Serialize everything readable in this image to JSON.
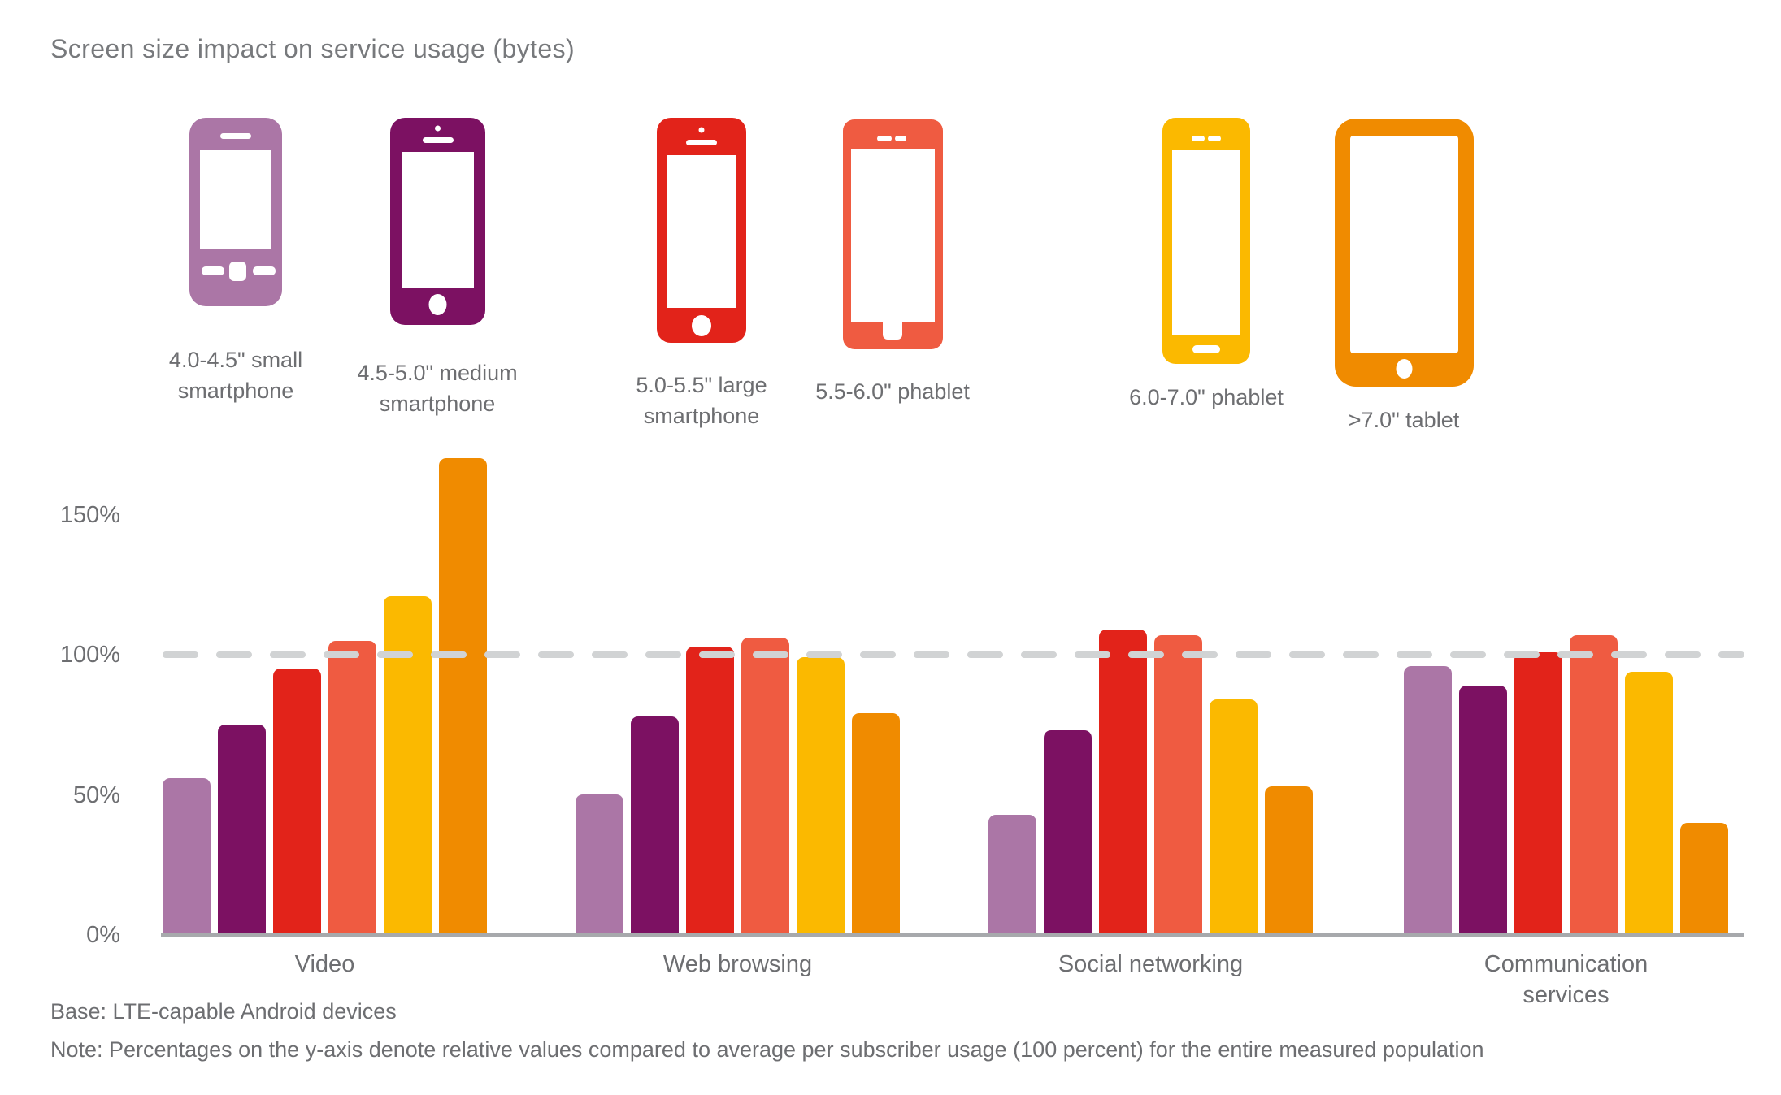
{
  "title": "Screen size impact on service usage (bytes)",
  "legend": {
    "items": [
      {
        "label": "4.0-4.5\" small smartphone",
        "icon": "small-smartphone-icon",
        "color": "#ab76a6"
      },
      {
        "label": "4.5-5.0\" medium smartphone",
        "icon": "medium-smartphone-icon",
        "color": "#7c1162"
      },
      {
        "label": "5.0-5.5\" large smartphone",
        "icon": "large-smartphone-icon",
        "color": "#e2231a"
      },
      {
        "label": "5.5-6.0\" phablet",
        "icon": "small-phablet-icon",
        "color": "#ef5b41"
      },
      {
        "label": "6.0-7.0\" phablet",
        "icon": "large-phablet-icon",
        "color": "#fbb900"
      },
      {
        "label": ">7.0\" tablet",
        "icon": "tablet-icon",
        "color": "#f08b00"
      }
    ]
  },
  "chart_data": {
    "type": "bar",
    "title": "Screen size impact on service usage (bytes)",
    "categories": [
      "Video",
      "Web browsing",
      "Social networking",
      "Communication services"
    ],
    "series": [
      {
        "name": "4.0-4.5\" small smartphone",
        "color": "#ab76a6",
        "values": [
          56,
          50,
          43,
          96
        ]
      },
      {
        "name": "4.5-5.0\" medium smartphone",
        "color": "#7c1162",
        "values": [
          75,
          78,
          73,
          89
        ]
      },
      {
        "name": "5.0-5.5\" large smartphone",
        "color": "#e2231a",
        "values": [
          95,
          103,
          109,
          101
        ]
      },
      {
        "name": "5.5-6.0\" phablet",
        "color": "#ef5b41",
        "values": [
          105,
          106,
          107,
          107
        ]
      },
      {
        "name": "6.0-7.0\" phablet",
        "color": "#fbb900",
        "values": [
          121,
          99,
          84,
          94
        ]
      },
      {
        "name": ">7.0\" tablet",
        "color": "#f08b00",
        "values": [
          170,
          79,
          53,
          40
        ]
      }
    ],
    "xlabel": "",
    "ylabel": "",
    "ylim": [
      0,
      175
    ],
    "ytick_percents": [
      0,
      50,
      100,
      150
    ],
    "ytick_labels": [
      "0%",
      "50%",
      "100%",
      "150%"
    ],
    "reference_line_percent": 100,
    "grid": "dashed horizontal reference line at 100% only",
    "legend_position": "top as device icons"
  },
  "footnotes": {
    "base": "Base: LTE-capable Android devices",
    "note": "Note: Percentages on the y-axis denote relative values compared to average per subscriber usage (100 percent) for the entire measured population"
  },
  "colors": {
    "background": "#ffffff",
    "title_text": "#77797c",
    "label_text": "#6d6e71",
    "reference_line": "#d1d3d4",
    "axis_line": "#a7a9ac"
  }
}
